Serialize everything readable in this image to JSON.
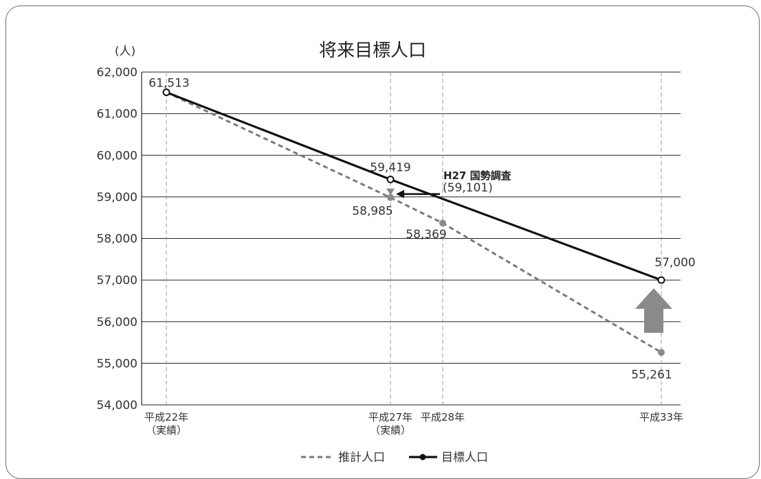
{
  "chart_data": {
    "type": "line",
    "title": "将来目標人口",
    "ylabel": "(人)",
    "ylim": [
      54000,
      62000
    ],
    "ytick_step": 1000,
    "y_tick_labels": [
      "54,000",
      "55,000",
      "56,000",
      "57,000",
      "58,000",
      "59,000",
      "60,000",
      "61,000",
      "62,000"
    ],
    "x_positions": [
      22,
      27,
      28,
      33
    ],
    "x_tick_labels": [
      {
        "line1": "平成22年",
        "line2": "（実績）"
      },
      {
        "line1": "平成27年",
        "line2": "（実績）"
      },
      {
        "line1": "平成28年",
        "line2": ""
      },
      {
        "line1": "平成33年",
        "line2": ""
      }
    ],
    "series": [
      {
        "name": "推計人口",
        "style": "dashed",
        "color": "#7a7a7a",
        "points": [
          {
            "x": 22,
            "y": 61513,
            "label": ""
          },
          {
            "x": 27,
            "y": 58985,
            "label": "58,985"
          },
          {
            "x": 28,
            "y": 58369,
            "label": "58,369"
          },
          {
            "x": 33,
            "y": 55261,
            "label": "55,261"
          }
        ]
      },
      {
        "name": "目標人口",
        "style": "solid",
        "color": "#111111",
        "points": [
          {
            "x": 22,
            "y": 61513,
            "label": "61,513"
          },
          {
            "x": 27,
            "y": 59419,
            "label": "59,419"
          },
          {
            "x": 33,
            "y": 57000,
            "label": "57,000"
          }
        ]
      }
    ],
    "annotation": {
      "x": 27,
      "y": 59101,
      "title": "H27 国勢調査",
      "value": "(59,101)"
    },
    "up_arrow_color": "#8a8a8a",
    "grid": true,
    "legend_position": "bottom-center"
  }
}
